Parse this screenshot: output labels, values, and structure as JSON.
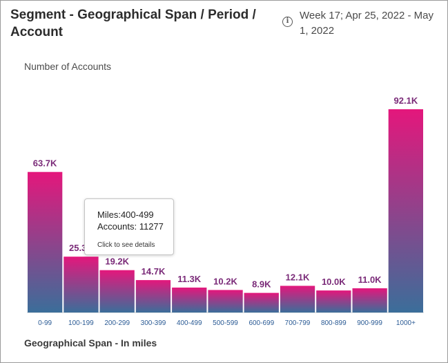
{
  "header": {
    "title": "Segment - Geographical Span / Period / Account",
    "date_range": "Week 17; Apr 25, 2022 - May 1, 2022",
    "info_icon": "info-icon"
  },
  "chart_data": {
    "type": "bar",
    "ylabel": "Number of Accounts",
    "xlabel": "Geographical Span - In miles",
    "categories": [
      "0-99",
      "100-199",
      "200-299",
      "300-399",
      "400-499",
      "500-599",
      "600-699",
      "700-799",
      "800-899",
      "900-999",
      "1000+"
    ],
    "values": [
      63700,
      25300,
      19200,
      14700,
      11300,
      10200,
      8900,
      12100,
      10000,
      11000,
      92100
    ],
    "data_labels": [
      "63.7K",
      "25.3K",
      "19.2K",
      "14.7K",
      "11.3K",
      "10.2K",
      "8.9K",
      "12.1K",
      "10.0K",
      "11.0K",
      "92.1K"
    ],
    "ylim": [
      0,
      92100
    ],
    "grid": false,
    "colors": {
      "top": "#e4177c",
      "bottom": "#3b6e9a"
    }
  },
  "tooltip": {
    "miles": "Miles:400-499",
    "accounts": "Accounts: 11277",
    "hint": "Click to see details"
  }
}
